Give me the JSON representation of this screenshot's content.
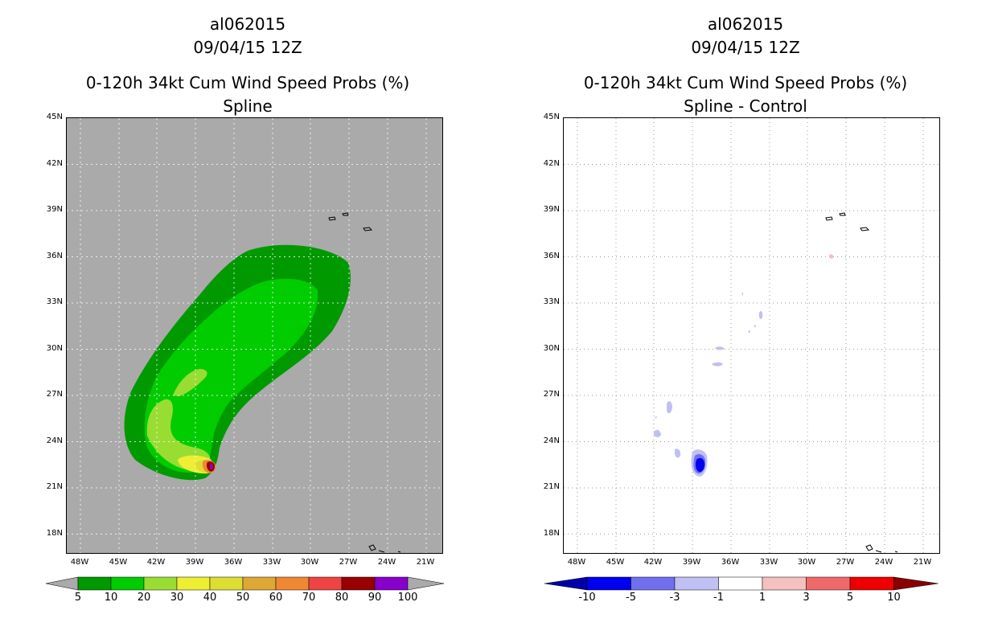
{
  "left": {
    "storm": "al062015",
    "date": "09/04/15 12Z",
    "title": "0-120h 34kt Cum Wind Speed Probs (%)",
    "subtitle": "Spline",
    "background": "#aaaaaa"
  },
  "right": {
    "storm": "al062015",
    "date": "09/04/15 12Z",
    "title": "0-120h 34kt Cum Wind Speed Probs (%)",
    "subtitle": "Spline - Control",
    "background": "#ffffff"
  },
  "chart_data": [
    {
      "type": "heatmap",
      "title": "0-120h 34kt Cum Wind Speed Probs (%)",
      "subtitle": "Spline",
      "xlabel": "",
      "ylabel": "",
      "x_ticks": [
        "48W",
        "45W",
        "42W",
        "39W",
        "36W",
        "33W",
        "30W",
        "27W",
        "24W",
        "21W"
      ],
      "y_ticks": [
        "45N",
        "42N",
        "39N",
        "36N",
        "33N",
        "30N",
        "27N",
        "24N",
        "21N",
        "18N"
      ],
      "xlim": [
        -49,
        -20
      ],
      "ylim": [
        16.5,
        45
      ],
      "colorbar": {
        "labels": [
          "5",
          "10",
          "20",
          "30",
          "40",
          "50",
          "60",
          "70",
          "80",
          "90",
          "100"
        ],
        "colors": [
          "#009900",
          "#00cc00",
          "#99dd33",
          "#eeee33",
          "#dddd33",
          "#dda833",
          "#ee8833",
          "#ee4444",
          "#990000",
          "#8800cc"
        ]
      },
      "peak_location": {
        "lon": -37.7,
        "lat": 22.3
      },
      "peak_value_range": "90-100"
    },
    {
      "type": "heatmap",
      "title": "0-120h 34kt Cum Wind Speed Probs (%)",
      "subtitle": "Spline - Control",
      "xlabel": "",
      "ylabel": "",
      "x_ticks": [
        "48W",
        "45W",
        "42W",
        "39W",
        "36W",
        "33W",
        "30W",
        "27W",
        "24W",
        "21W"
      ],
      "y_ticks": [
        "45N",
        "42N",
        "39N",
        "36N",
        "33N",
        "30N",
        "27N",
        "24N",
        "21N",
        "18N"
      ],
      "xlim": [
        -49,
        -20
      ],
      "ylim": [
        16.5,
        45
      ],
      "colorbar": {
        "labels": [
          "-10",
          "-5",
          "-3",
          "-1",
          "1",
          "3",
          "5",
          "10"
        ],
        "colors": [
          "#0000aa",
          "#0000ee",
          "#7070ee",
          "#c0c0f5",
          "#ffffff",
          "#f5c0c0",
          "#ee6a6a",
          "#ee0000",
          "#880000"
        ]
      },
      "min_location": {
        "lon": -38.1,
        "lat": 22.3
      },
      "min_value_range": "-10 to -5"
    }
  ]
}
